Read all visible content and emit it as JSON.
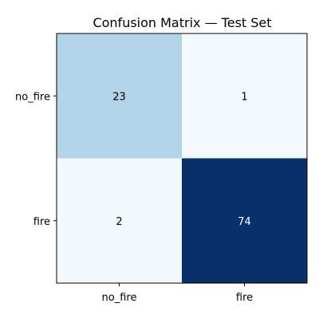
{
  "chart_data": {
    "type": "heatmap",
    "title": "Confusion Matrix — Test Set",
    "xlabel": "",
    "ylabel": "",
    "x_categories": [
      "no_fire",
      "fire"
    ],
    "y_categories": [
      "no_fire",
      "fire"
    ],
    "values": [
      [
        23,
        1
      ],
      [
        2,
        74
      ]
    ],
    "color_scale": "Blues",
    "value_range": [
      0,
      74
    ],
    "cell_text_colors": [
      [
        "#000000",
        "#000000"
      ],
      [
        "#000000",
        "#ffffff"
      ]
    ],
    "grid": false
  }
}
